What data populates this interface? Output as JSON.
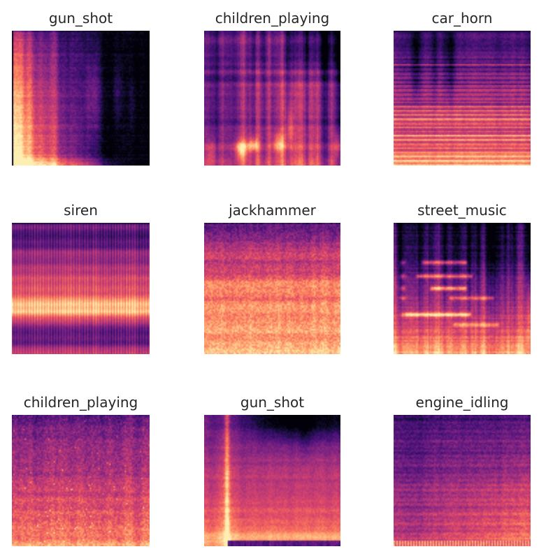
{
  "figure": {
    "background": "#ffffff",
    "title_color": "#262626",
    "colormap": {
      "name": "magma",
      "stops": [
        "#000004",
        "#140e36",
        "#3b0f70",
        "#641a80",
        "#8c2981",
        "#b73779",
        "#de4968",
        "#f7705c",
        "#fe9f6d",
        "#fecf92",
        "#fcfdbf"
      ]
    }
  },
  "tiles": [
    {
      "label": "gun_shot",
      "pattern": "gunshot_decay",
      "seed": 101
    },
    {
      "label": "children_playing",
      "pattern": "vertical_streaks",
      "seed": 202
    },
    {
      "label": "car_horn",
      "pattern": "harmonic_bands",
      "seed": 303
    },
    {
      "label": "siren",
      "pattern": "siren_bands",
      "seed": 404
    },
    {
      "label": "jackhammer",
      "pattern": "noisy_gradient",
      "seed": 505
    },
    {
      "label": "street_music",
      "pattern": "music_mixed",
      "seed": 606
    },
    {
      "label": "children_playing",
      "pattern": "speckle_gradient",
      "seed": 707
    },
    {
      "label": "gun_shot",
      "pattern": "flash_column",
      "seed": 808
    },
    {
      "label": "engine_idling",
      "pattern": "idle_texture",
      "seed": 909
    }
  ],
  "chart_data": {
    "type": "heatmap",
    "layout": "3x3 grid of audio mel-spectrogram images, axes and ticks hidden, no colorbar",
    "colormap": "magma",
    "subplots": [
      {
        "row": 0,
        "col": 0,
        "title": "gun_shot",
        "description": "bright impulse filling the left third, decaying to black toward the right; faint purple reverb patches mid-right; thin bright band along the bottom"
      },
      {
        "row": 0,
        "col": 1,
        "title": "children_playing",
        "description": "purple field with vertical voice streaks, dark patches at top right, bright orange low-frequency bursts near the bottom"
      },
      {
        "row": 0,
        "col": 2,
        "title": "car_horn",
        "description": "stacked thin horizontal harmonic lines; dark purple upper quarter with faint dark vertical streaks, bright orange lower half"
      },
      {
        "row": 1,
        "col": 0,
        "title": "siren",
        "description": "steady horizontal bands spanning full width with fine vertical dotted texture; pale cream high-energy band about two-thirds down, purple band below it"
      },
      {
        "row": 1,
        "col": 1,
        "title": "jackhammer",
        "description": "broadband grainy orange noise, purple only at the very top, pale bright rows through the lower half"
      },
      {
        "row": 1,
        "col": 2,
        "title": "street_music",
        "description": "dark top with vertical streaks, bright horizontal note segments in the middle, bright orange base with column variations"
      },
      {
        "row": 2,
        "col": 0,
        "title": "children_playing",
        "description": "grainy gradient from purple at the top to speckled orange at the bottom, brightest along the bottom edge"
      },
      {
        "row": 2,
        "col": 1,
        "title": "gun_shot",
        "description": "bright vertical transient near the left edge over an orange gradient; dark purple top, thin dark purple row at the very bottom"
      },
      {
        "row": 2,
        "col": 2,
        "title": "engine_idling",
        "description": "even purple-to-orange texture brightening toward bottom right, faint horizontal bands, bright dotted comb along the bottom edge"
      }
    ]
  }
}
